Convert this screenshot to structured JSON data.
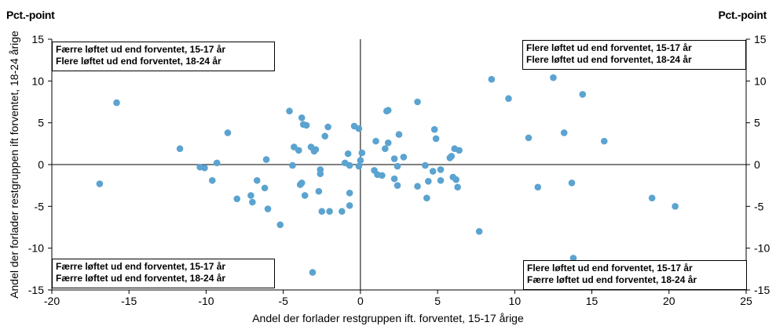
{
  "unit_left": "Pct.-point",
  "unit_right": "Pct.-point",
  "quadrant_labels": {
    "top_left": [
      "Færre løftet ud end forventet, 15-17 år",
      "Flere løftet ud end forventet, 18-24 år"
    ],
    "top_right": [
      "Flere løftet ud end forventet, 15-17 år",
      "Flere løftet ud end forventet, 18-24 år"
    ],
    "bottom_left": [
      "Færre løftet ud end forventet, 15-17 år",
      "Færre løftet ud end forventet, 18-24 år"
    ],
    "bottom_right": [
      "Flere løftet ud end forventet, 15-17 år",
      "Færre løftet ud end forventet, 18-24 år"
    ]
  },
  "chart_data": {
    "type": "scatter",
    "xlabel": "Andel der forlader restgruppen ift. forventet, 15-17 årige",
    "ylabel": "Andel der forlader restgruppen ift forventet, 18-24 årige",
    "xlim": [
      -20,
      25
    ],
    "ylim": [
      -15,
      15
    ],
    "x_ticks": [
      -20,
      -15,
      -10,
      -5,
      0,
      5,
      10,
      15,
      20,
      25
    ],
    "y_ticks": [
      -15,
      -10,
      -5,
      0,
      5,
      10,
      15
    ],
    "marker_color": "#5BA3D0",
    "points": [
      [
        -16.9,
        -2.3
      ],
      [
        -15.8,
        7.4
      ],
      [
        -11.7,
        1.9
      ],
      [
        -10.4,
        -0.3
      ],
      [
        -10.1,
        -0.4
      ],
      [
        -9.6,
        -1.9
      ],
      [
        -9.3,
        0.2
      ],
      [
        -8.6,
        3.8
      ],
      [
        -8.0,
        -4.1
      ],
      [
        -7.1,
        -3.7
      ],
      [
        -7.0,
        -4.5
      ],
      [
        -6.7,
        -1.9
      ],
      [
        -6.2,
        -2.8
      ],
      [
        -6.1,
        0.6
      ],
      [
        -6.0,
        -5.3
      ],
      [
        -5.2,
        -7.2
      ],
      [
        -4.6,
        6.4
      ],
      [
        -4.4,
        -0.1
      ],
      [
        -4.3,
        2.1
      ],
      [
        -4.0,
        1.7
      ],
      [
        -3.9,
        -2.4
      ],
      [
        -3.8,
        -2.2
      ],
      [
        -3.8,
        5.6
      ],
      [
        -3.7,
        4.8
      ],
      [
        -3.6,
        -3.7
      ],
      [
        -3.5,
        4.7
      ],
      [
        -3.2,
        2.1
      ],
      [
        -3.1,
        -12.9
      ],
      [
        -3.0,
        1.6
      ],
      [
        -2.9,
        1.8
      ],
      [
        -2.7,
        -3.2
      ],
      [
        -2.6,
        -0.6
      ],
      [
        -2.6,
        -1.1
      ],
      [
        -2.5,
        -5.6
      ],
      [
        -2.3,
        3.4
      ],
      [
        -2.1,
        4.5
      ],
      [
        -2.0,
        -5.6
      ],
      [
        -1.2,
        -5.6
      ],
      [
        -1.0,
        0.2
      ],
      [
        -0.8,
        1.3
      ],
      [
        -0.7,
        -0.1
      ],
      [
        -0.7,
        -4.9
      ],
      [
        -0.7,
        -3.4
      ],
      [
        -0.4,
        4.6
      ],
      [
        -0.1,
        4.3
      ],
      [
        -0.1,
        -0.2
      ],
      [
        0.0,
        0.5
      ],
      [
        0.1,
        1.4
      ],
      [
        0.9,
        -0.7
      ],
      [
        1.0,
        2.8
      ],
      [
        1.1,
        -1.2
      ],
      [
        1.4,
        -1.3
      ],
      [
        1.6,
        1.9
      ],
      [
        1.7,
        6.4
      ],
      [
        1.8,
        6.5
      ],
      [
        1.8,
        2.6
      ],
      [
        2.2,
        0.7
      ],
      [
        2.2,
        -1.7
      ],
      [
        2.4,
        -0.2
      ],
      [
        2.4,
        -2.5
      ],
      [
        2.5,
        3.6
      ],
      [
        2.8,
        0.9
      ],
      [
        3.7,
        7.5
      ],
      [
        3.7,
        -2.6
      ],
      [
        4.2,
        -0.1
      ],
      [
        4.3,
        -4.0
      ],
      [
        4.4,
        -2.0
      ],
      [
        4.7,
        -0.8
      ],
      [
        4.8,
        4.2
      ],
      [
        4.9,
        3.1
      ],
      [
        5.2,
        -0.6
      ],
      [
        5.2,
        -1.9
      ],
      [
        5.8,
        0.8
      ],
      [
        5.9,
        1.0
      ],
      [
        6.0,
        -1.5
      ],
      [
        6.1,
        1.9
      ],
      [
        6.2,
        -1.8
      ],
      [
        6.3,
        -2.7
      ],
      [
        6.4,
        1.7
      ],
      [
        7.7,
        -8.0
      ],
      [
        8.5,
        10.2
      ],
      [
        9.6,
        7.9
      ],
      [
        10.9,
        3.2
      ],
      [
        11.5,
        -2.7
      ],
      [
        12.5,
        10.4
      ],
      [
        13.2,
        3.8
      ],
      [
        13.7,
        -2.2
      ],
      [
        13.8,
        -11.2
      ],
      [
        14.4,
        8.4
      ],
      [
        15.8,
        2.8
      ],
      [
        18.9,
        -4.0
      ],
      [
        20.4,
        -5.0
      ]
    ]
  }
}
